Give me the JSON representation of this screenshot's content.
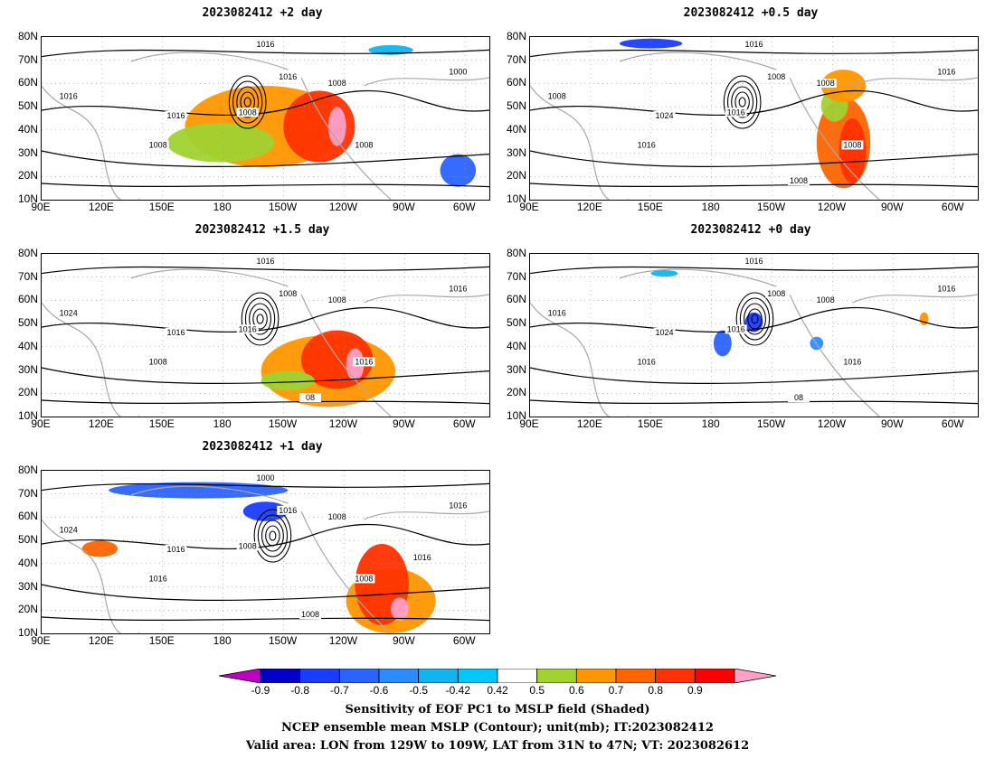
{
  "panels": [
    {
      "title": "2023082412 +2 day",
      "lead": "+2 day",
      "contour_labels": [
        "1016",
        "1016",
        "1008",
        "1000",
        "1008",
        "1016",
        "1008",
        "1016",
        "1008"
      ]
    },
    {
      "title": "2023082412 +0.5 day",
      "lead": "+0.5 day",
      "contour_labels": [
        "1016",
        "1008",
        "1016",
        "1016",
        "1008",
        "1024",
        "1016",
        "1008",
        "1008",
        "1008"
      ]
    },
    {
      "title": "2023082412 +1.5 day",
      "lead": "+1.5 day",
      "contour_labels": [
        "1016",
        "1008",
        "1016",
        "1016",
        "1008",
        "1016",
        "1008",
        "1024",
        "1016",
        "08"
      ]
    },
    {
      "title": "2023082412 +0 day",
      "lead": "+0 day",
      "contour_labels": [
        "1016",
        "1008",
        "1016",
        "1016",
        "1008",
        "1024",
        "1016",
        "1016",
        "1016",
        "08"
      ]
    },
    {
      "title": "2023082412 +1 day",
      "lead": "+1 day",
      "contour_labels": [
        "1000",
        "1016",
        "1008",
        "1016",
        "1008",
        "1016",
        "1016",
        "1024",
        "1008",
        "1008",
        "1016"
      ]
    }
  ],
  "axes": {
    "lat_labels": [
      "80N",
      "70N",
      "60N",
      "50N",
      "40N",
      "30N",
      "20N",
      "10N"
    ],
    "lon_labels": [
      "90E",
      "120E",
      "150E",
      "180",
      "150W",
      "120W",
      "90W",
      "60W"
    ]
  },
  "colorbar": {
    "ticks": [
      "-0.9",
      "-0.8",
      "-0.7",
      "-0.6",
      "-0.5",
      "-0.42",
      "0.42",
      "0.5",
      "0.6",
      "0.7",
      "0.8",
      "0.9"
    ],
    "colors": [
      "#c000c0",
      "#0000c8",
      "#1a3cff",
      "#2a63ff",
      "#2c8cff",
      "#10b4f0",
      "#00c8ff",
      "#ffffff",
      "#a0d232",
      "#ff9600",
      "#ff6400",
      "#ff3200",
      "#ff0000",
      "#ffa0c8"
    ]
  },
  "captions": {
    "line1": "Sensitivity of EOF PC1 to MSLP field (Shaded)",
    "line2": "NCEP ensemble mean MSLP (Contour); unit(mb); IT:2023082412",
    "line3": "Valid area: LON from 129W to 109W, LAT from 31N to 47N; VT: 2023082612"
  }
}
